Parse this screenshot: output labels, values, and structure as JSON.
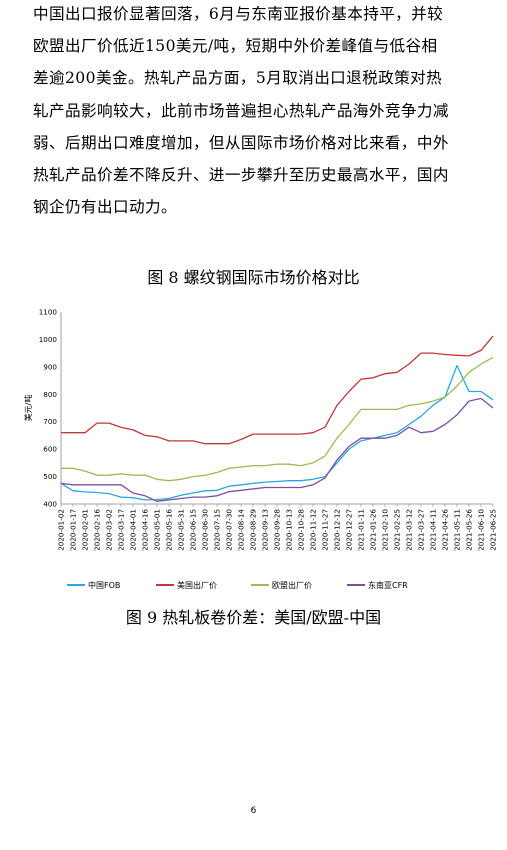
{
  "paragraph": {
    "lines": [
      "中国出口报价显著回落，6月与东南亚报价基本持平，并较",
      "欧盟出厂价低近150美元/吨，短期中外价差峰值与低谷相",
      "差逾200美金。热轧产品方面，5月取消出口退税政策对热",
      "轧产品影响较大，此前市场普遍担心热轧产品海外竞争力减",
      "弱、后期出口难度增加，但从国际市场价格对比来看，中外",
      "热轧产品价差不降反升、进一步攀升至历史最高水平，国内",
      "钢企仍有出口动力。"
    ]
  },
  "figure8_caption": "图 8  螺纹钢国际市场价格对比",
  "figure9_caption": "图 9  热轧板卷价差：美国/欧盟-中国",
  "page_number": "6",
  "chart_data": {
    "type": "line",
    "ylabel": "美元/吨",
    "xlabel": "",
    "ylim": [
      400,
      1100
    ],
    "yticks": [
      400,
      500,
      600,
      700,
      800,
      900,
      1000,
      1100
    ],
    "grid": false,
    "legend_position": "bottom",
    "x": [
      "2020-01-02",
      "2020-01-17",
      "2020-02-01",
      "2020-02-16",
      "2020-03-02",
      "2020-03-17",
      "2020-04-01",
      "2020-04-16",
      "2020-05-01",
      "2020-05-16",
      "2020-05-31",
      "2020-06-15",
      "2020-06-30",
      "2020-07-15",
      "2020-07-30",
      "2020-08-14",
      "2020-08-29",
      "2020-09-13",
      "2020-09-28",
      "2020-10-13",
      "2020-10-28",
      "2020-11-12",
      "2020-11-27",
      "2020-12-12",
      "2020-12-27",
      "2021-01-11",
      "2021-01-26",
      "2021-02-10",
      "2021-02-25",
      "2021-03-12",
      "2021-03-27",
      "2021-04-11",
      "2021-04-26",
      "2021-05-11",
      "2021-05-26",
      "2021-06-10",
      "2021-06-25"
    ],
    "series": [
      {
        "name": "中国FOB",
        "color": "#2aa7df",
        "values": [
          476,
          448,
          444,
          442,
          438,
          425,
          423,
          415,
          416,
          420,
          432,
          440,
          448,
          450,
          465,
          470,
          475,
          480,
          482,
          485,
          485,
          490,
          500,
          550,
          600,
          630,
          640,
          650,
          660,
          690,
          720,
          760,
          790,
          905,
          810,
          810,
          780
        ]
      },
      {
        "name": "美国出厂价",
        "color": "#c0393b",
        "values": [
          660,
          660,
          660,
          695,
          695,
          680,
          670,
          650,
          645,
          630,
          630,
          630,
          620,
          620,
          620,
          635,
          655,
          655,
          655,
          655,
          655,
          660,
          680,
          760,
          810,
          855,
          860,
          875,
          880,
          910,
          950,
          950,
          945,
          942,
          940,
          960,
          1012
        ]
      },
      {
        "name": "欧盟出厂价",
        "color": "#9bbb59",
        "values": [
          530,
          530,
          520,
          505,
          505,
          510,
          505,
          505,
          490,
          485,
          490,
          500,
          505,
          515,
          530,
          535,
          540,
          540,
          545,
          545,
          540,
          550,
          575,
          640,
          690,
          745,
          745,
          745,
          745,
          760,
          765,
          775,
          790,
          830,
          880,
          910,
          935
        ]
      },
      {
        "name": "东南亚CFR",
        "color": "#7b4f9e",
        "values": [
          475,
          470,
          470,
          470,
          470,
          470,
          440,
          430,
          410,
          415,
          420,
          425,
          425,
          430,
          445,
          450,
          455,
          460,
          460,
          460,
          460,
          470,
          495,
          560,
          610,
          640,
          640,
          640,
          650,
          680,
          660,
          665,
          690,
          725,
          775,
          785,
          750
        ]
      }
    ]
  }
}
